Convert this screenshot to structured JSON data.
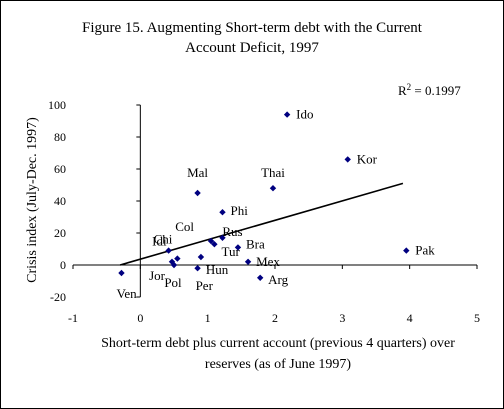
{
  "chart_data": {
    "type": "scatter",
    "title_line1": "Figure 15. Augmenting Short-term debt with the Current",
    "title_line2": "Account Deficit, 1997",
    "xlabel_line1": "Short-term debt plus current account (previous 4 quarters) over",
    "xlabel_line2": "reserves (as of June 1997)",
    "ylabel": "Crisis index  (July-Dec. 1997)",
    "xlim": [
      -1,
      5
    ],
    "ylim": [
      -20,
      100
    ],
    "xticks": [
      "-1",
      "0",
      "1",
      "2",
      "3",
      "4",
      "5"
    ],
    "yticks": [
      "-20",
      "0",
      "20",
      "40",
      "60",
      "80",
      "100"
    ],
    "r2_label": "R",
    "r2_sup": "2",
    "r2_value": " = 0.1997",
    "marker_color": "#000080",
    "trendline": {
      "x": [
        -0.3,
        3.9
      ],
      "y": [
        0,
        51
      ]
    },
    "points": [
      {
        "label": "Ido",
        "x": 2.18,
        "y": 94
      },
      {
        "label": "Kor",
        "x": 3.08,
        "y": 66
      },
      {
        "label": "Thai",
        "x": 1.97,
        "y": 48
      },
      {
        "label": "Mal",
        "x": 0.85,
        "y": 45
      },
      {
        "label": "Phi",
        "x": 1.22,
        "y": 33
      },
      {
        "label": "Col",
        "x": 1.05,
        "y": 15
      },
      {
        "label": "Rus",
        "x": 1.1,
        "y": 13
      },
      {
        "label": "Chi",
        "x": 0.55,
        "y": 4
      },
      {
        "label": "Idi",
        "x": 0.42,
        "y": 9
      },
      {
        "label": "Bra",
        "x": 1.45,
        "y": 11
      },
      {
        "label": "Tur",
        "x": 1.22,
        "y": 17
      },
      {
        "label": "Mex",
        "x": 1.6,
        "y": 2
      },
      {
        "label": "Arg",
        "x": 1.78,
        "y": -8
      },
      {
        "label": "Hun",
        "x": 0.9,
        "y": 5
      },
      {
        "label": "Per",
        "x": 0.85,
        "y": -2
      },
      {
        "label": "Pol",
        "x": 0.5,
        "y": 0
      },
      {
        "label": "Jor",
        "x": 0.47,
        "y": 2
      },
      {
        "label": "Ven",
        "x": -0.28,
        "y": -5
      },
      {
        "label": "Pak",
        "x": 3.95,
        "y": 9
      }
    ]
  }
}
